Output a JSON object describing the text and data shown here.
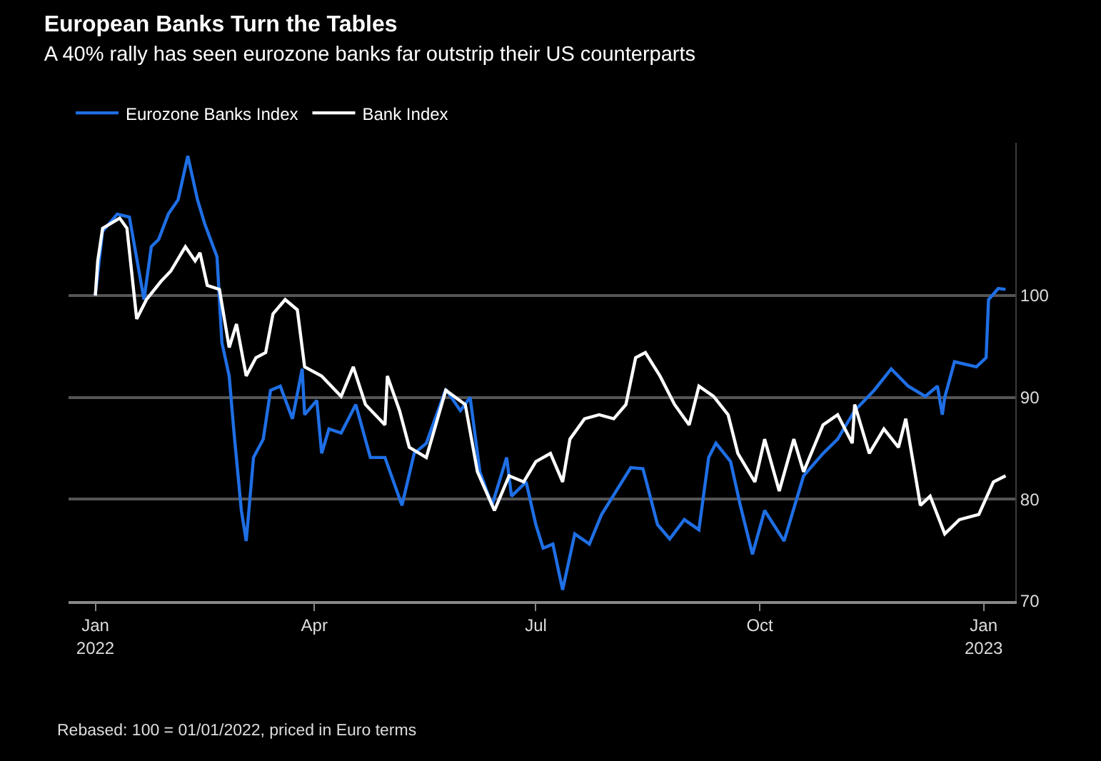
{
  "chart_data": {
    "type": "line",
    "title": "European Banks Turn the Tables",
    "subtitle": "A 40% rally has seen eurozone banks far outstrip their US counterparts",
    "series": [
      {
        "name": "Eurozone Banks Index",
        "color": "#1f6fe5",
        "x": [
          "2022-01-01",
          "2022-01-04",
          "2022-01-10",
          "2022-01-15",
          "2022-01-21",
          "2022-01-24",
          "2022-01-27",
          "2022-01-31",
          "2022-02-04",
          "2022-02-08",
          "2022-02-12",
          "2022-02-15",
          "2022-02-20",
          "2022-02-22",
          "2022-02-25",
          "2022-02-27",
          "2022-03-02",
          "2022-03-04",
          "2022-03-07",
          "2022-03-11",
          "2022-03-14",
          "2022-03-18",
          "2022-03-23",
          "2022-03-27",
          "2022-03-28",
          "2022-04-02",
          "2022-04-04",
          "2022-04-07",
          "2022-04-12",
          "2022-04-18",
          "2022-04-24",
          "2022-04-30",
          "2022-05-07",
          "2022-05-12",
          "2022-05-17",
          "2022-05-25",
          "2022-05-31",
          "2022-06-04",
          "2022-06-08",
          "2022-06-13",
          "2022-06-19",
          "2022-06-21",
          "2022-06-27",
          "2022-07-01",
          "2022-07-04",
          "2022-07-08",
          "2022-07-12",
          "2022-07-17",
          "2022-07-23",
          "2022-07-28",
          "2022-08-03",
          "2022-08-09",
          "2022-08-14",
          "2022-08-20",
          "2022-08-25",
          "2022-08-31",
          "2022-09-06",
          "2022-09-10",
          "2022-09-13",
          "2022-09-19",
          "2022-09-23",
          "2022-09-28",
          "2022-10-03",
          "2022-10-11",
          "2022-10-19",
          "2022-10-27",
          "2022-11-02",
          "2022-11-09",
          "2022-11-17",
          "2022-11-24",
          "2022-12-01",
          "2022-12-08",
          "2022-12-13",
          "2022-12-15",
          "2022-12-16",
          "2022-12-20",
          "2022-12-29",
          "2023-01-02",
          "2023-01-03",
          "2023-01-07",
          "2023-01-10"
        ],
        "values": [
          100,
          106.3,
          108,
          107.7,
          99.6,
          104.8,
          105.5,
          108,
          109.4,
          113.7,
          109.4,
          107,
          103.8,
          95.4,
          92.1,
          86.5,
          78.9,
          75.9,
          84.1,
          85.9,
          90.7,
          91.1,
          87.9,
          92.8,
          88.3,
          89.7,
          84.5,
          86.9,
          86.5,
          89.3,
          84.1,
          84.1,
          79.4,
          84.5,
          85.5,
          90.8,
          88.7,
          90,
          82.7,
          79.4,
          84.1,
          80.3,
          81.7,
          77.5,
          75.2,
          75.6,
          71.1,
          76.6,
          75.6,
          78.5,
          80.8,
          83.1,
          83,
          77.5,
          76.1,
          78,
          77,
          84.1,
          85.5,
          83.7,
          79.4,
          74.6,
          78.9,
          75.9,
          82.3,
          84.5,
          85.9,
          88.7,
          90.7,
          92.8,
          91.1,
          90.1,
          91.1,
          88.3,
          90,
          93.5,
          93,
          93.9,
          99.6,
          100.7,
          100.6
        ]
      },
      {
        "name": "Bank Index",
        "color": "#ffffff",
        "x": [
          "2022-01-01",
          "2022-01-02",
          "2022-01-04",
          "2022-01-11",
          "2022-01-14",
          "2022-01-18",
          "2022-01-22",
          "2022-01-28",
          "2022-02-01",
          "2022-02-07",
          "2022-02-11",
          "2022-02-13",
          "2022-02-16",
          "2022-02-21",
          "2022-02-25",
          "2022-02-28",
          "2022-03-04",
          "2022-03-08",
          "2022-03-12",
          "2022-03-15",
          "2022-03-20",
          "2022-03-25",
          "2022-03-28",
          "2022-04-04",
          "2022-04-12",
          "2022-04-17",
          "2022-04-22",
          "2022-04-30",
          "2022-05-01",
          "2022-05-06",
          "2022-05-10",
          "2022-05-17",
          "2022-05-25",
          "2022-06-02",
          "2022-06-07",
          "2022-06-14",
          "2022-06-20",
          "2022-06-26",
          "2022-07-01",
          "2022-07-07",
          "2022-07-12",
          "2022-07-15",
          "2022-07-21",
          "2022-07-27",
          "2022-08-02",
          "2022-08-07",
          "2022-08-11",
          "2022-08-15",
          "2022-08-21",
          "2022-08-27",
          "2022-09-02",
          "2022-09-06",
          "2022-09-12",
          "2022-09-18",
          "2022-09-22",
          "2022-09-29",
          "2022-10-03",
          "2022-10-09",
          "2022-10-15",
          "2022-10-19",
          "2022-10-27",
          "2022-11-02",
          "2022-11-08",
          "2022-11-09",
          "2022-11-15",
          "2022-11-21",
          "2022-11-27",
          "2022-11-30",
          "2022-12-06",
          "2022-12-10",
          "2022-12-16",
          "2022-12-22",
          "2022-12-30",
          "2023-01-05",
          "2023-01-10"
        ],
        "values": [
          100,
          103.4,
          106.6,
          107.6,
          106.6,
          97.7,
          99.6,
          101.4,
          102.4,
          104.8,
          103.4,
          104.2,
          101,
          100.6,
          94.9,
          97.2,
          92.1,
          93.9,
          94.4,
          98.2,
          99.6,
          98.6,
          93,
          92.1,
          90.1,
          93,
          89.3,
          87.3,
          92.1,
          88.7,
          85.1,
          84.1,
          90.7,
          89.3,
          82.7,
          78.9,
          82.3,
          81.7,
          83.7,
          84.5,
          81.7,
          85.9,
          87.9,
          88.3,
          87.9,
          89.3,
          93.9,
          94.4,
          92.1,
          89.3,
          87.3,
          91.1,
          90.1,
          88.3,
          84.5,
          81.7,
          85.9,
          80.8,
          85.9,
          82.7,
          87.3,
          88.3,
          85.5,
          89.3,
          84.5,
          86.9,
          85.1,
          87.9,
          79.4,
          80.3,
          76.6,
          78,
          78.5,
          81.7,
          82.3
        ]
      }
    ],
    "xlim": [
      "2021-12-21",
      "2023-01-14"
    ],
    "xticks": [
      {
        "value": "2022-01-01",
        "label": "Jan\n2022"
      },
      {
        "value": "2022-04-01",
        "label": "Apr"
      },
      {
        "value": "2022-07-01",
        "label": "Jul"
      },
      {
        "value": "2022-10-01",
        "label": "Oct"
      },
      {
        "value": "2023-01-01",
        "label": "Jan\n2023"
      }
    ],
    "ylim": [
      70,
      115
    ],
    "yticks": [
      70,
      80,
      90,
      100
    ],
    "grid": "y",
    "legend": "top left",
    "marker": "none",
    "line_style": "solid",
    "annotations": [
      "Rebased: 100 = 01/01/2022, priced in Euro terms"
    ]
  }
}
